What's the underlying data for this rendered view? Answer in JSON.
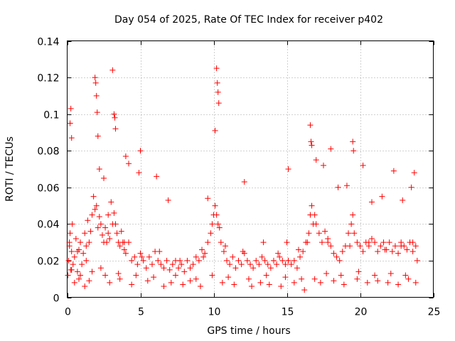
{
  "chart_data": {
    "type": "scatter",
    "title": "Day 054 of 2025, Rate Of TEC Index for receiver p402",
    "xlabel": "GPS time / hours",
    "ylabel": "ROTI / TECUs",
    "xlim": [
      0,
      25
    ],
    "ylim": [
      0,
      0.14
    ],
    "x_ticks": [
      0,
      5,
      10,
      15,
      20,
      25
    ],
    "y_ticks": [
      0,
      0.02,
      0.04,
      0.06,
      0.08,
      0.1,
      0.12,
      0.14
    ],
    "x_tick_labels": [
      "0",
      "5",
      "10",
      "15",
      "20",
      "25"
    ],
    "y_tick_labels": [
      "0",
      "0.02",
      "0.04",
      "0.06",
      "0.08",
      "0.1",
      "0.12",
      "0.14"
    ],
    "grid": true,
    "marker": "+",
    "marker_color": "#ff0000",
    "series": [
      {
        "name": "ROTI",
        "x": [
          0.05,
          0.1,
          0.15,
          0.2,
          0.25,
          0.3,
          0.35,
          0.4,
          0.5,
          0.6,
          0.7,
          0.8,
          0.9,
          1.0,
          1.1,
          1.2,
          1.3,
          1.4,
          1.5,
          1.6,
          1.7,
          1.8,
          1.9,
          2.0,
          2.1,
          2.2,
          2.3,
          2.4,
          2.5,
          2.6,
          2.7,
          2.8,
          2.9,
          3.0,
          3.1,
          3.2,
          3.3,
          3.4,
          3.5,
          3.6,
          3.7,
          3.8,
          3.9,
          4.0,
          4.2,
          4.4,
          4.6,
          4.8,
          5.0,
          5.2,
          5.4,
          5.6,
          5.8,
          6.0,
          6.2,
          6.4,
          6.6,
          6.8,
          7.0,
          7.2,
          7.4,
          7.6,
          7.8,
          8.0,
          8.2,
          8.4,
          8.6,
          8.8,
          9.0,
          9.2,
          9.4,
          9.6,
          9.8,
          9.9,
          10.0,
          10.1,
          10.2,
          10.3,
          10.4,
          10.5,
          10.7,
          10.9,
          11.1,
          11.3,
          11.5,
          11.7,
          11.9,
          12.1,
          12.3,
          12.5,
          12.7,
          12.9,
          13.1,
          13.3,
          13.5,
          13.7,
          13.9,
          14.1,
          14.3,
          14.5,
          14.7,
          14.9,
          15.0,
          15.1,
          15.3,
          15.5,
          15.7,
          15.9,
          16.1,
          16.3,
          16.5,
          16.6,
          16.7,
          16.8,
          16.9,
          17.0,
          17.2,
          17.4,
          17.6,
          17.8,
          18.0,
          18.2,
          18.4,
          18.6,
          18.8,
          19.0,
          19.2,
          19.4,
          19.5,
          19.6,
          19.8,
          20.0,
          20.2,
          20.4,
          20.6,
          20.8,
          21.0,
          21.2,
          21.4,
          21.6,
          21.8,
          22.0,
          22.2,
          22.4,
          22.6,
          22.8,
          23.0,
          23.2,
          23.4,
          23.6,
          23.8,
          23.9,
          0.2,
          0.25,
          0.3,
          1.9,
          1.95,
          2.0,
          2.05,
          3.1,
          3.2,
          3.25,
          3.3,
          10.2,
          10.25,
          10.3,
          10.35,
          10.1,
          16.6,
          16.65,
          16.7,
          19.5,
          19.55,
          2.1,
          2.2,
          2.5,
          4.0,
          4.2,
          4.9,
          5.0,
          6.1,
          6.9,
          9.6,
          12.1,
          15.1,
          17.0,
          17.5,
          18.0,
          18.5,
          19.1,
          20.2,
          20.8,
          21.5,
          22.3,
          22.9,
          23.5,
          23.7,
          0.5,
          0.8,
          1.2,
          1.5,
          2.6,
          2.9,
          3.6,
          4.4,
          5.5,
          6.6,
          7.1,
          7.9,
          8.4,
          9.1,
          10.6,
          11.4,
          12.6,
          13.2,
          13.8,
          14.6,
          15.5,
          16.2,
          16.9,
          17.3,
          18.2,
          18.9,
          19.8,
          20.5,
          21.2,
          21.9,
          22.6,
          23.3,
          23.8,
          0.3,
          0.9,
          1.7,
          2.3,
          3.5,
          4.7,
          5.9,
          7.4,
          8.8,
          9.9,
          11.0,
          12.4,
          13.6,
          14.9,
          16.0,
          17.7,
          18.7,
          19.9,
          21.0,
          22.1,
          23.1,
          0.15,
          0.7,
          1.3,
          2.8,
          3.9,
          5.1,
          6.3,
          7.7,
          9.3,
          10.8,
          12.0,
          13.4,
          14.4,
          15.8,
          16.4,
          17.8,
          19.3,
          20.6,
          21.7,
          22.8,
          23.6
        ],
        "y": [
          0.012,
          0.02,
          0.028,
          0.035,
          0.015,
          0.025,
          0.04,
          0.018,
          0.022,
          0.032,
          0.014,
          0.026,
          0.03,
          0.018,
          0.024,
          0.035,
          0.028,
          0.042,
          0.03,
          0.036,
          0.045,
          0.055,
          0.048,
          0.05,
          0.038,
          0.044,
          0.04,
          0.034,
          0.03,
          0.038,
          0.03,
          0.045,
          0.032,
          0.052,
          0.04,
          0.046,
          0.04,
          0.035,
          0.03,
          0.028,
          0.036,
          0.03,
          0.026,
          0.024,
          0.03,
          0.02,
          0.022,
          0.018,
          0.024,
          0.02,
          0.016,
          0.022,
          0.018,
          0.025,
          0.02,
          0.018,
          0.016,
          0.02,
          0.015,
          0.018,
          0.02,
          0.016,
          0.018,
          0.014,
          0.02,
          0.016,
          0.018,
          0.022,
          0.02,
          0.026,
          0.024,
          0.03,
          0.035,
          0.04,
          0.045,
          0.05,
          0.045,
          0.04,
          0.038,
          0.03,
          0.025,
          0.02,
          0.018,
          0.022,
          0.016,
          0.02,
          0.018,
          0.024,
          0.02,
          0.018,
          0.016,
          0.02,
          0.018,
          0.022,
          0.02,
          0.018,
          0.016,
          0.02,
          0.018,
          0.022,
          0.02,
          0.018,
          0.03,
          0.02,
          0.018,
          0.02,
          0.016,
          0.022,
          0.025,
          0.03,
          0.035,
          0.045,
          0.05,
          0.04,
          0.045,
          0.04,
          0.035,
          0.03,
          0.036,
          0.03,
          0.028,
          0.024,
          0.022,
          0.02,
          0.025,
          0.028,
          0.035,
          0.04,
          0.045,
          0.035,
          0.03,
          0.028,
          0.025,
          0.03,
          0.028,
          0.032,
          0.03,
          0.025,
          0.028,
          0.03,
          0.026,
          0.03,
          0.025,
          0.028,
          0.024,
          0.03,
          0.028,
          0.026,
          0.03,
          0.025,
          0.028,
          0.02,
          0.095,
          0.103,
          0.087,
          0.12,
          0.117,
          0.11,
          0.101,
          0.124,
          0.1,
          0.098,
          0.092,
          0.125,
          0.117,
          0.112,
          0.106,
          0.091,
          0.094,
          0.085,
          0.083,
          0.085,
          0.08,
          0.088,
          0.07,
          0.065,
          0.077,
          0.073,
          0.068,
          0.08,
          0.066,
          0.053,
          0.054,
          0.063,
          0.07,
          0.075,
          0.072,
          0.081,
          0.06,
          0.061,
          0.072,
          0.052,
          0.055,
          0.069,
          0.053,
          0.06,
          0.068,
          0.008,
          0.01,
          0.006,
          0.009,
          0.012,
          0.008,
          0.01,
          0.007,
          0.009,
          0.006,
          0.008,
          0.007,
          0.009,
          0.006,
          0.008,
          0.007,
          0.006,
          0.008,
          0.007,
          0.006,
          0.008,
          0.004,
          0.01,
          0.008,
          0.009,
          0.007,
          0.01,
          0.008,
          0.009,
          0.008,
          0.007,
          0.01,
          0.008,
          0.015,
          0.012,
          0.014,
          0.016,
          0.013,
          0.012,
          0.011,
          0.012,
          0.01,
          0.012,
          0.011,
          0.01,
          0.012,
          0.011,
          0.01,
          0.013,
          0.012,
          0.014,
          0.012,
          0.013,
          0.012,
          0.03,
          0.025,
          0.02,
          0.035,
          0.03,
          0.022,
          0.025,
          0.02,
          0.022,
          0.028,
          0.025,
          0.03,
          0.024,
          0.026,
          0.03,
          0.032,
          0.028,
          0.03,
          0.026,
          0.028,
          0.03
        ]
      }
    ]
  }
}
